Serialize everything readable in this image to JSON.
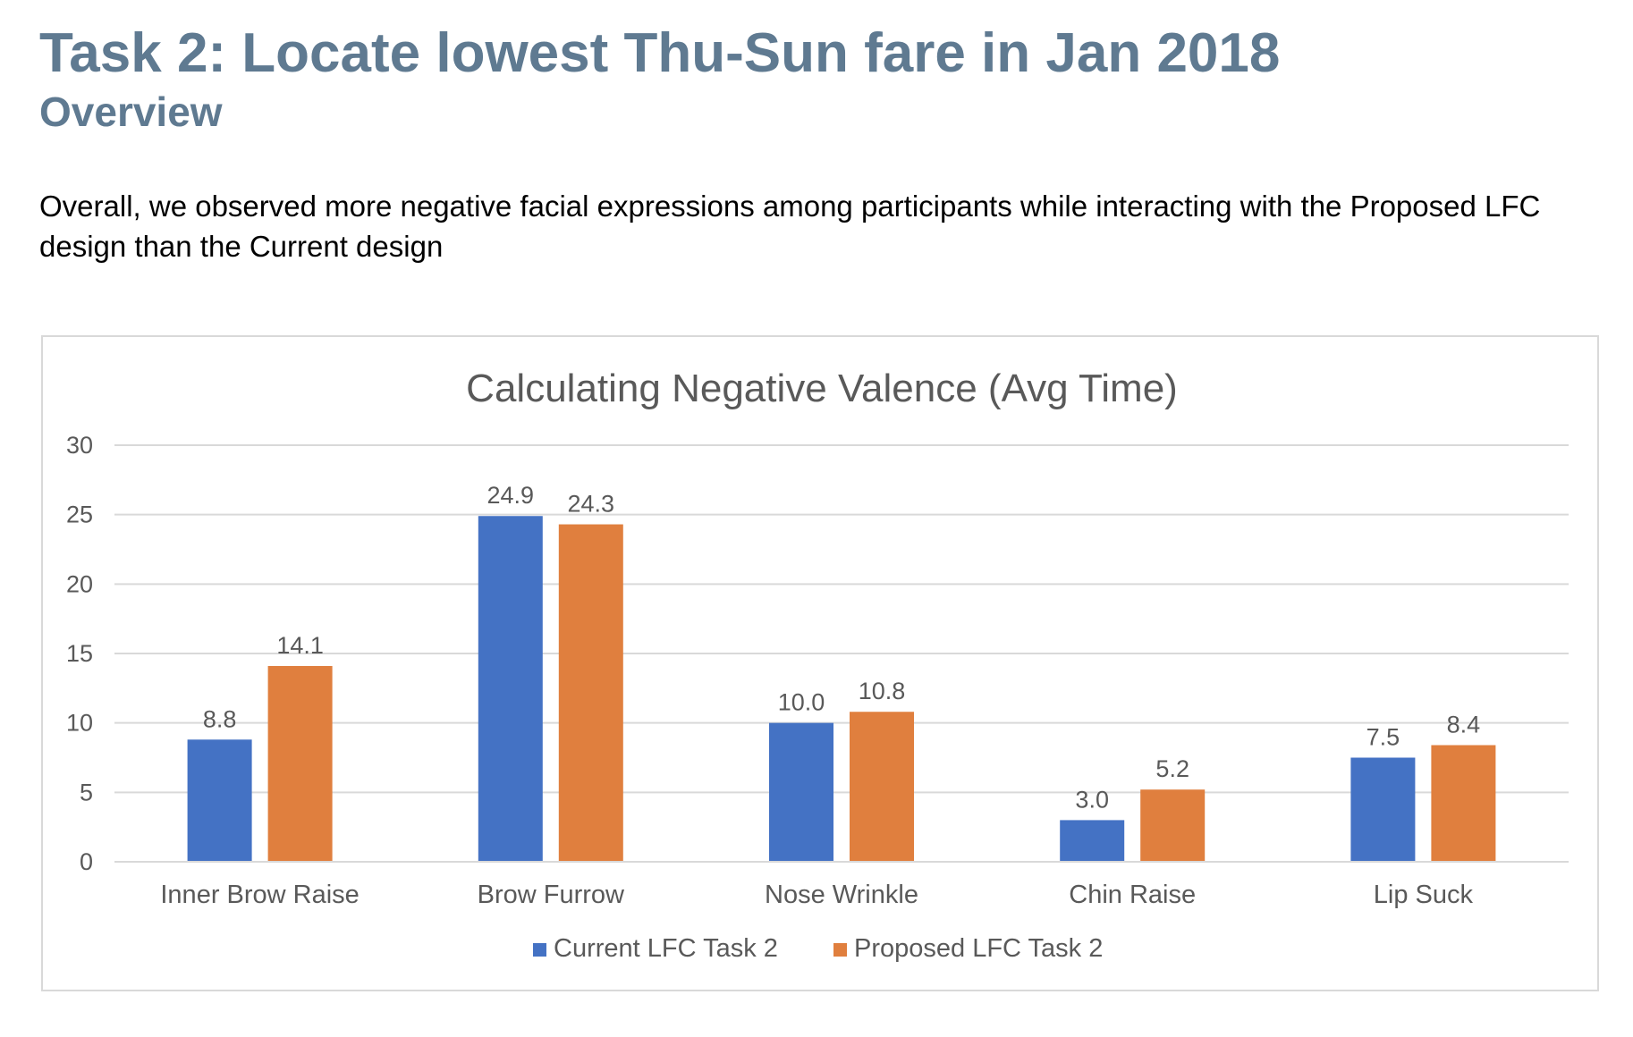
{
  "page": {
    "title": "Task 2: Locate lowest Thu-Sun fare in Jan 2018",
    "subtitle": "Overview",
    "summary": "Overall, we observed more negative facial expressions among participants while interacting with the Proposed LFC design than the Current design"
  },
  "chart_data": {
    "type": "bar",
    "title": "Calculating Negative Valence (Avg Time)",
    "categories": [
      "Inner Brow Raise",
      "Brow Furrow",
      "Nose Wrinkle",
      "Chin Raise",
      "Lip Suck"
    ],
    "series": [
      {
        "name": "Current LFC Task 2",
        "values": [
          8.8,
          24.9,
          10.0,
          3.0,
          7.5
        ],
        "labels": [
          "8.8",
          "24.9",
          "10.0",
          "3.0",
          "7.5"
        ],
        "color": "#4472c4"
      },
      {
        "name": "Proposed LFC Task 2",
        "values": [
          14.1,
          24.3,
          10.8,
          5.2,
          8.4
        ],
        "labels": [
          "14.1",
          "24.3",
          "10.8",
          "5.2",
          "8.4"
        ],
        "color": "#e07f3e"
      }
    ],
    "ylim": [
      0,
      30
    ],
    "yticks": [
      "0",
      "5",
      "10",
      "15",
      "20",
      "25",
      "30"
    ],
    "xlabel": "",
    "ylabel": "",
    "grid": true,
    "legend_position": "bottom",
    "colors": {
      "grid": "#d9d9d9",
      "axis_text": "#595959",
      "title_text": "#595959"
    }
  }
}
